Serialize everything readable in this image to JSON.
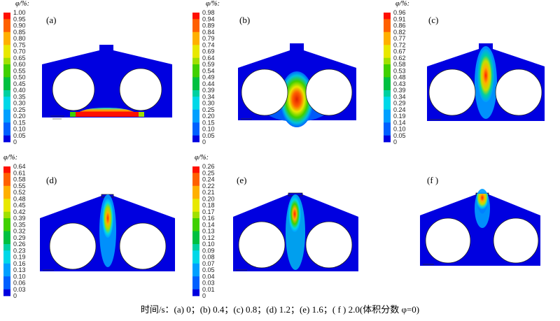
{
  "figure": {
    "caption": "时间/s：(a) 0；(b) 0.4；(c) 0.8；(d) 1.2；(e) 1.6；( f ) 2.0(体积分数 φ=0)",
    "colorbar_title": "φ/%:",
    "palette": [
      "#0000e0",
      "#0060ff",
      "#00a0ff",
      "#00d8e8",
      "#00d0a0",
      "#00c040",
      "#40d000",
      "#a0e000",
      "#e8e800",
      "#ffb000",
      "#ff6000",
      "#ff1000"
    ]
  },
  "panels": [
    {
      "label": "(a)",
      "ticks": [
        "1.00",
        "0.95",
        "0.90",
        "0.85",
        "0.80",
        "0.75",
        "0.70",
        "0.65",
        "0.60",
        "0.55",
        "0.50",
        "0.45",
        "0.40",
        "0.35",
        "0.30",
        "0.25",
        "0.20",
        "0.15",
        "0.10",
        "0.05",
        "0"
      ]
    },
    {
      "label": "(b)",
      "ticks": [
        "0.98",
        "0.94",
        "0.89",
        "0.84",
        "0.79",
        "0.74",
        "0.69",
        "0.64",
        "0.59",
        "0.54",
        "0.49",
        "0.44",
        "0.39",
        "0.34",
        "0.30",
        "0.25",
        "0.20",
        "0.15",
        "0.10",
        "0.05",
        "0"
      ]
    },
    {
      "label": "(c)",
      "ticks": [
        "0.96",
        "0.91",
        "0.86",
        "0.82",
        "0.77",
        "0.72",
        "0.67",
        "0.62",
        "0.58",
        "0.53",
        "0.48",
        "0.43",
        "0.39",
        "0.34",
        "0.29",
        "0.24",
        "0.19",
        "0.14",
        "0.10",
        "0.05",
        "0"
      ]
    },
    {
      "label": "(d)",
      "ticks": [
        "0.64",
        "0.61",
        "0.58",
        "0.55",
        "0.52",
        "0.48",
        "0.45",
        "0.42",
        "0.39",
        "0.35",
        "0.32",
        "0.29",
        "0.26",
        "0.23",
        "0.19",
        "0.16",
        "0.13",
        "0.10",
        "0.06",
        "0.03",
        "0"
      ]
    },
    {
      "label": "(e)",
      "ticks": [
        "0.26",
        "0.25",
        "0.24",
        "0.22",
        "0.21",
        "0.20",
        "0.18",
        "0.17",
        "0.16",
        "0.14",
        "0.13",
        "0.12",
        "0.10",
        "0.09",
        "0.08",
        "0.07",
        "0.05",
        "0.04",
        "0.03",
        "0.01",
        "0"
      ]
    },
    {
      "label": "(f )",
      "ticks": []
    }
  ]
}
